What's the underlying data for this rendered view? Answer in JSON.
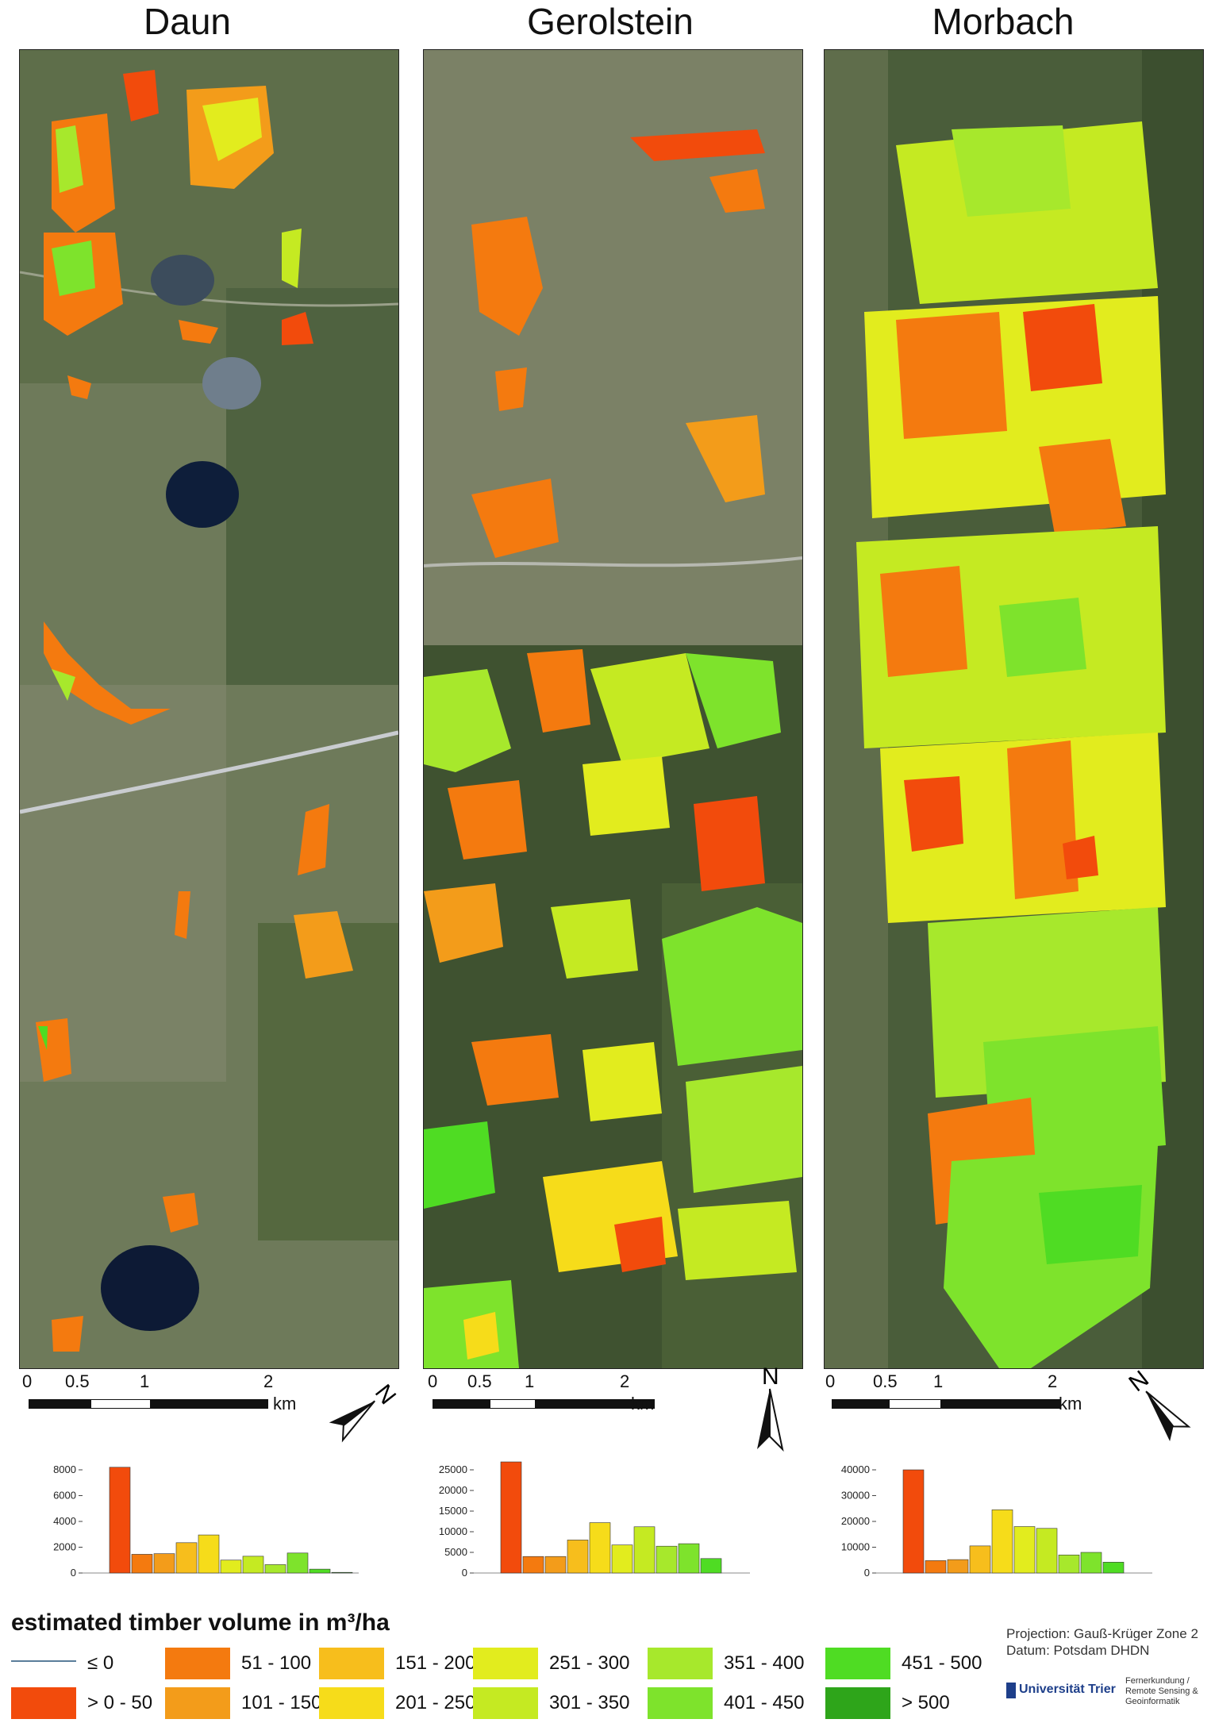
{
  "panels": [
    {
      "title": "Daun",
      "scale_ticks": [
        "0",
        "0.5",
        "1",
        "2"
      ],
      "scale_unit": "km",
      "north_label": "N",
      "north_rotation": 52,
      "hist": {
        "ymax": 8000,
        "yticks": [
          "8000",
          "6000",
          "4000",
          "2000",
          "0"
        ],
        "values": [
          0,
          8200,
          1450,
          1500,
          2350,
          2950,
          1000,
          1300,
          650,
          1550,
          300,
          50
        ]
      }
    },
    {
      "title": "Gerolstein",
      "scale_ticks": [
        "0",
        "0.5",
        "1",
        "2"
      ],
      "scale_unit": "km",
      "north_label": "N",
      "north_rotation": 0,
      "hist": {
        "ymax": 25000,
        "yticks": [
          "25000",
          "20000",
          "15000",
          "10000",
          "5000",
          "0"
        ],
        "values": [
          0,
          27500,
          4000,
          4000,
          8000,
          12200,
          6800,
          11200,
          6500,
          7100,
          3500,
          0
        ]
      }
    },
    {
      "title": "Morbach",
      "scale_ticks": [
        "0",
        "0.5",
        "1",
        "2"
      ],
      "scale_unit": "km",
      "north_label": "N",
      "north_rotation": -38,
      "hist": {
        "ymax": 40000,
        "yticks": [
          "40000",
          "30000",
          "20000",
          "10000",
          "0"
        ],
        "values": [
          0,
          40000,
          4800,
          5200,
          10500,
          24500,
          18000,
          17300,
          7000,
          8000,
          4200,
          0
        ]
      }
    }
  ],
  "legend": {
    "title": "estimated timber volume in m³/ha",
    "classes": [
      {
        "label": "≤ 0",
        "color": "#5a7d9a",
        "line": true
      },
      {
        "label": "> 0 - 50",
        "color": "#f24b0c"
      },
      {
        "label": "51 - 100",
        "color": "#f47a0f"
      },
      {
        "label": "101 - 150",
        "color": "#f39c1a"
      },
      {
        "label": "151 - 200",
        "color": "#f7be1c"
      },
      {
        "label": "201 - 250",
        "color": "#f6dc1a"
      },
      {
        "label": "251 - 300",
        "color": "#e2ec1e"
      },
      {
        "label": "301 - 350",
        "color": "#c5ea22"
      },
      {
        "label": "351 - 400",
        "color": "#a7e82c"
      },
      {
        "label": "401 - 450",
        "color": "#7ee32c"
      },
      {
        "label": "451 - 500",
        "color": "#4fdc23"
      },
      {
        "label": "> 500",
        "color": "#2ea51a"
      }
    ]
  },
  "footer": {
    "projection": "Projection: Gauß-Krüger Zone 2",
    "datum": "Datum: Potsdam DHDN",
    "logo": "Universität Trier",
    "department": "Fernerkundung / Remote Sensing & Geoinformatik"
  }
}
